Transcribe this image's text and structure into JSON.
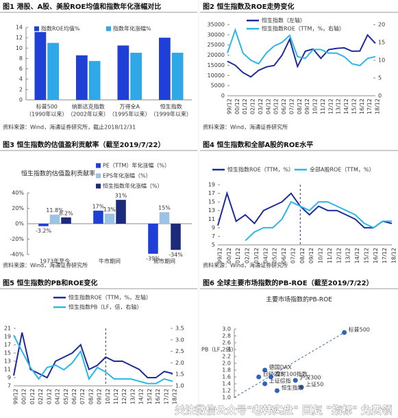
{
  "watermark": "关注微信公众号\"老韩实盘\" 回复 \"指标\" 免费领",
  "chart_data": [
    {
      "type": "bar",
      "title": "图1  港股、A股、美股ROE均值和指数年化涨幅对比",
      "categories": [
        "标普500",
        "纳斯达克指数",
        "万得全A",
        "恒生指数"
      ],
      "category_periods": [
        "（1990年以来）",
        "（2002年以来）",
        "（1995年以来）",
        "（1999年以来）"
      ],
      "series": [
        {
          "name": "指数ROE均值%",
          "color": "#1f3fd6",
          "values": [
            13.1,
            8.6,
            10.5,
            12.0
          ]
        },
        {
          "name": "指数年化涨幅%",
          "color": "#2fa8e8",
          "values": [
            11.0,
            7.5,
            9.1,
            9.1
          ]
        }
      ],
      "ylim": [
        0,
        14
      ],
      "yticks": [
        0,
        2,
        4,
        6,
        8,
        10,
        12,
        14
      ],
      "source": "资料来源：Wind，海通证券研究所，截止2018/12/31"
    },
    {
      "type": "line",
      "title": "图2  恒生指数及ROE走势变化",
      "x": [
        "99/12",
        "00/12",
        "01/12",
        "02/12",
        "03/12",
        "04/12",
        "05/12",
        "06/12",
        "07/12",
        "08/12",
        "09/12",
        "10/12",
        "11/12",
        "12/12",
        "13/12",
        "14/12",
        "15/12",
        "16/12",
        "17/12",
        "18/12"
      ],
      "series": [
        {
          "name": "恒生指数（左轴）",
          "color": "#1c2a9a",
          "values": [
            17000,
            15000,
            11400,
            9300,
            12500,
            14200,
            14900,
            19900,
            27800,
            14400,
            21900,
            23000,
            18400,
            22700,
            23300,
            23600,
            21900,
            22000,
            29900,
            25800
          ]
        },
        {
          "name": "恒生指数ROE（TTM，%，右轴）",
          "color": "#29b6e8",
          "axis": "y2",
          "values": [
            12,
            18.5,
            12,
            10,
            9,
            12,
            14,
            15,
            17,
            11,
            10.5,
            13,
            13,
            12,
            12,
            11,
            9,
            8.5,
            10.5,
            11
          ]
        }
      ],
      "ylim": [
        0,
        35000
      ],
      "yticks": [
        0,
        5000,
        10000,
        15000,
        20000,
        25000,
        30000,
        35000
      ],
      "y2lim": [
        0,
        20
      ],
      "y2ticks": [
        0,
        5,
        10,
        15,
        20
      ],
      "source": "资料来源：Wind，海通证券研究所"
    },
    {
      "type": "bar",
      "title": "图3  恒生指数的估值盈利贡献率（截至2019/7/22）",
      "subtitle": "恒生指数的估值盈利贡献率",
      "categories": [
        "1973年至今",
        "牛市期间",
        "熊市期间"
      ],
      "series": [
        {
          "name": "PE（TTM）年化涨幅（%）",
          "color": "#1f3fd6",
          "values": [
            -3.2,
            17,
            -39
          ],
          "value_labels": [
            "-3.2%",
            "17%",
            "-39%"
          ]
        },
        {
          "name": "EPS年化涨幅（%）",
          "color": "#9cc3e6",
          "values": [
            11.8,
            13,
            15
          ],
          "value_labels": [
            "11.8%",
            "13%",
            "15%"
          ]
        },
        {
          "name": "恒生指数年化涨幅（%）",
          "color": "#1c2a7a",
          "values": [
            8.2,
            31,
            -34
          ],
          "value_labels": [
            "8.2%",
            "31%",
            "-34%"
          ]
        }
      ],
      "ylim": [
        -40,
        40
      ],
      "yticks": [
        {
          "value": -40,
          "label": "-40%"
        },
        {
          "value": -20,
          "label": "-20%"
        },
        {
          "value": 0,
          "label": "0%"
        },
        {
          "value": 20,
          "label": "20%"
        },
        {
          "value": 40,
          "label": "40%"
        }
      ],
      "source": "资料来源：Wind，海通证券研究所"
    },
    {
      "type": "line",
      "title": "图4  恒生指数和全部A股的ROE水平",
      "x": [
        "99/12",
        "00/12",
        "01/12",
        "02/12",
        "03/12",
        "04/12",
        "05/12",
        "06/12",
        "07/12",
        "08/12",
        "09/12",
        "10/12",
        "11/12",
        "12/12",
        "13/12",
        "14/12",
        "15/12",
        "16/12",
        "17/12",
        "18/12"
      ],
      "series": [
        {
          "name": "恒生指数ROE（TTM，%）",
          "color": "#1c2a9a",
          "values": [
            9.5,
            17,
            10.5,
            12,
            10,
            13,
            14,
            15,
            17,
            14,
            12,
            14,
            13,
            13,
            12,
            11,
            9,
            9,
            10.5,
            10
          ]
        },
        {
          "name": "全部A股ROE（TTM，%）",
          "color": "#29b6e8",
          "values": [
            null,
            null,
            null,
            6,
            8,
            9,
            9,
            11,
            15,
            14,
            13,
            15,
            15,
            14,
            13,
            12,
            10,
            9,
            10.5,
            10.5
          ]
        }
      ],
      "ylim": [
        5,
        19
      ],
      "yticks": [
        5,
        7,
        9,
        11,
        13,
        15,
        17,
        19
      ],
      "vline": "08/12",
      "source": "资料来源：Wind，海通证券研究所"
    },
    {
      "type": "line",
      "title": "图5  恒生指数的PB和ROE变化",
      "x": [
        "99/12",
        "00/12",
        "01/12",
        "02/12",
        "03/12",
        "04/12",
        "05/12",
        "06/12",
        "07/12",
        "08/12",
        "09/12",
        "10/12",
        "11/12",
        "12/12",
        "13/12",
        "14/12",
        "15/12",
        "16/12",
        "17/12",
        "18/12"
      ],
      "series": [
        {
          "name": "恒生指数ROE（TTM，%，左轴）",
          "color": "#1c2a9a",
          "values": [
            9.5,
            20,
            11,
            10,
            9,
            13,
            14,
            15,
            17,
            11,
            12,
            14,
            13,
            13,
            12,
            11,
            9,
            9,
            10.5,
            10
          ]
        },
        {
          "name": "恒生指数PB（LF，倍，右轴）",
          "color": "#29b6e8",
          "axis": "y2",
          "values": [
            3.2,
            2.5,
            1.8,
            1.3,
            1.8,
            1.9,
            1.7,
            2.0,
            2.5,
            1.3,
            1.8,
            1.6,
            1.3,
            1.3,
            1.3,
            1.2,
            1.1,
            1.1,
            1.3,
            1.2
          ]
        }
      ],
      "ylim": [
        7,
        21
      ],
      "yticks": [
        7,
        9,
        11,
        13,
        15,
        17,
        19,
        21
      ],
      "y2lim": [
        1.0,
        3.5
      ],
      "y2ticks": [
        {
          "value": 1.0,
          "label": "1.0"
        },
        1.5,
        {
          "value": 2.0,
          "label": "2.0"
        },
        2.5,
        {
          "value": 3.0,
          "label": "3.0"
        },
        3.5
      ],
      "vline": "10/12"
    },
    {
      "type": "scatter",
      "title": "图6  全球主要市场指数的PB-ROE（截至2019/7/22）",
      "subtitle": "主要市场指数的PB-ROE",
      "y_label": "PB（LF，倍）",
      "color": "#2f63b8",
      "labels": [
        "标普500",
        "德国DAX",
        "日经225",
        "富时100指数",
        "沪深300",
        "上证综指",
        "上证50",
        "恒生指数"
      ],
      "x": [
        16,
        9.5,
        9,
        10,
        12,
        9.5,
        12.5,
        10.5
      ],
      "values": [
        2.9,
        1.8,
        1.6,
        1.6,
        1.5,
        1.4,
        1.3,
        1.2
      ],
      "xlim": [
        7,
        20
      ],
      "ylim": [
        1.0,
        3.0
      ],
      "yticks": [
        {
          "value": 1.0,
          "label": "1.0"
        },
        1.2,
        1.4,
        1.6,
        1.8,
        {
          "value": 2.0,
          "label": "2.0"
        },
        2.2,
        2.4,
        2.6,
        2.8,
        {
          "value": 3.0,
          "label": "3.0"
        }
      ]
    }
  ]
}
